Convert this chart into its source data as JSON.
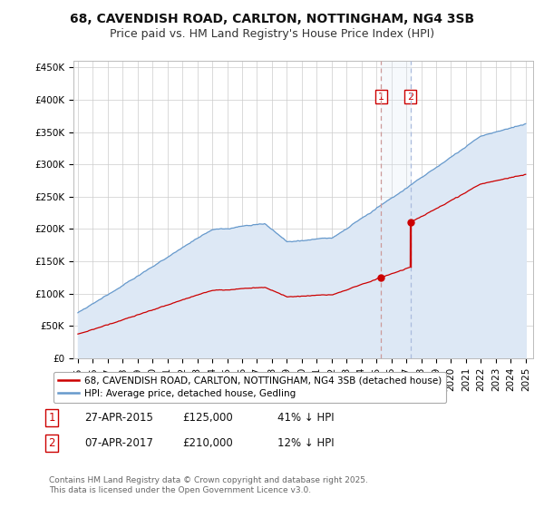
{
  "title": "68, CAVENDISH ROAD, CARLTON, NOTTINGHAM, NG4 3SB",
  "subtitle": "Price paid vs. HM Land Registry's House Price Index (HPI)",
  "ylabel_ticks": [
    "£0",
    "£50K",
    "£100K",
    "£150K",
    "£200K",
    "£250K",
    "£300K",
    "£350K",
    "£400K",
    "£450K"
  ],
  "ytick_values": [
    0,
    50000,
    100000,
    150000,
    200000,
    250000,
    300000,
    350000,
    400000,
    450000
  ],
  "ylim": [
    0,
    460000
  ],
  "xlim_start": 1994.7,
  "xlim_end": 2025.5,
  "xticks": [
    1995,
    1996,
    1997,
    1998,
    1999,
    2000,
    2001,
    2002,
    2003,
    2004,
    2005,
    2006,
    2007,
    2008,
    2009,
    2010,
    2011,
    2012,
    2013,
    2014,
    2015,
    2016,
    2017,
    2018,
    2019,
    2020,
    2021,
    2022,
    2023,
    2024,
    2025
  ],
  "sale1_date": 2015.32,
  "sale1_price": 125000,
  "sale1_label": "1",
  "sale2_date": 2017.27,
  "sale2_price": 210000,
  "sale2_label": "2",
  "vline_color": "#cc9999",
  "marker_color": "#cc0000",
  "hpi_color": "#6699cc",
  "hpi_fill_color": "#dde8f5",
  "price_color": "#cc0000",
  "label_box_color": "#cc0000",
  "legend_label1": "68, CAVENDISH ROAD, CARLTON, NOTTINGHAM, NG4 3SB (detached house)",
  "legend_label2": "HPI: Average price, detached house, Gedling",
  "table_row1": [
    "1",
    "27-APR-2015",
    "£125,000",
    "41% ↓ HPI"
  ],
  "table_row2": [
    "2",
    "07-APR-2017",
    "£210,000",
    "12% ↓ HPI"
  ],
  "footnote": "Contains HM Land Registry data © Crown copyright and database right 2025.\nThis data is licensed under the Open Government Licence v3.0.",
  "title_fontsize": 10,
  "subtitle_fontsize": 9,
  "tick_fontsize": 7.5,
  "legend_fontsize": 7.5,
  "background_color": "#ffffff",
  "grid_color": "#cccccc"
}
